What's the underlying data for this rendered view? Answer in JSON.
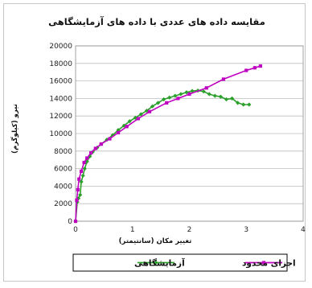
{
  "chart_data": {
    "type": "line",
    "title": "مقایسه داده های عددی با داده های آزمایشگاهی",
    "xlabel": "تغییر مکان (سانتیمتر)",
    "ylabel": "نیرو (کیلوگرم)",
    "xlim": [
      0,
      4
    ],
    "ylim": [
      0,
      20000
    ],
    "x_ticks": [
      0,
      1,
      2,
      3,
      4
    ],
    "y_ticks": [
      0,
      2000,
      4000,
      6000,
      8000,
      10000,
      12000,
      14000,
      16000,
      18000,
      20000
    ],
    "grid": "horizontal",
    "legend_position": "bottom",
    "series": [
      {
        "name": "آزمایشگاهی",
        "color": "#2ca02c",
        "marker": "diamond",
        "points": [
          [
            0,
            0
          ],
          [
            0.03,
            2200
          ],
          [
            0.05,
            2600
          ],
          [
            0.08,
            3000
          ],
          [
            0.1,
            4500
          ],
          [
            0.13,
            5200
          ],
          [
            0.16,
            6000
          ],
          [
            0.2,
            6800
          ],
          [
            0.25,
            7400
          ],
          [
            0.3,
            7900
          ],
          [
            0.38,
            8400
          ],
          [
            0.45,
            8800
          ],
          [
            0.55,
            9300
          ],
          [
            0.65,
            9800
          ],
          [
            0.75,
            10400
          ],
          [
            0.85,
            10900
          ],
          [
            0.95,
            11400
          ],
          [
            1.05,
            11800
          ],
          [
            1.15,
            12200
          ],
          [
            1.25,
            12600
          ],
          [
            1.35,
            13100
          ],
          [
            1.45,
            13500
          ],
          [
            1.55,
            13900
          ],
          [
            1.65,
            14100
          ],
          [
            1.75,
            14300
          ],
          [
            1.85,
            14500
          ],
          [
            1.95,
            14700
          ],
          [
            2.05,
            14850
          ],
          [
            2.15,
            14900
          ],
          [
            2.25,
            14800
          ],
          [
            2.35,
            14500
          ],
          [
            2.45,
            14300
          ],
          [
            2.55,
            14200
          ],
          [
            2.65,
            13900
          ],
          [
            2.75,
            14000
          ],
          [
            2.85,
            13500
          ],
          [
            2.95,
            13300
          ],
          [
            3.05,
            13300
          ]
        ]
      },
      {
        "name": "اجزای محدود",
        "color": "#c000c0",
        "marker": "square",
        "points": [
          [
            0,
            0
          ],
          [
            0.02,
            2400
          ],
          [
            0.04,
            3600
          ],
          [
            0.06,
            4800
          ],
          [
            0.1,
            5700
          ],
          [
            0.15,
            6700
          ],
          [
            0.2,
            7200
          ],
          [
            0.27,
            7800
          ],
          [
            0.35,
            8300
          ],
          [
            0.45,
            8800
          ],
          [
            0.6,
            9400
          ],
          [
            0.75,
            10100
          ],
          [
            0.9,
            10800
          ],
          [
            1.1,
            11700
          ],
          [
            1.3,
            12500
          ],
          [
            1.6,
            13500
          ],
          [
            1.8,
            14000
          ],
          [
            2.0,
            14500
          ],
          [
            2.3,
            15200
          ],
          [
            2.6,
            16200
          ],
          [
            3.0,
            17200
          ],
          [
            3.15,
            17500
          ],
          [
            3.25,
            17700
          ]
        ]
      }
    ]
  }
}
